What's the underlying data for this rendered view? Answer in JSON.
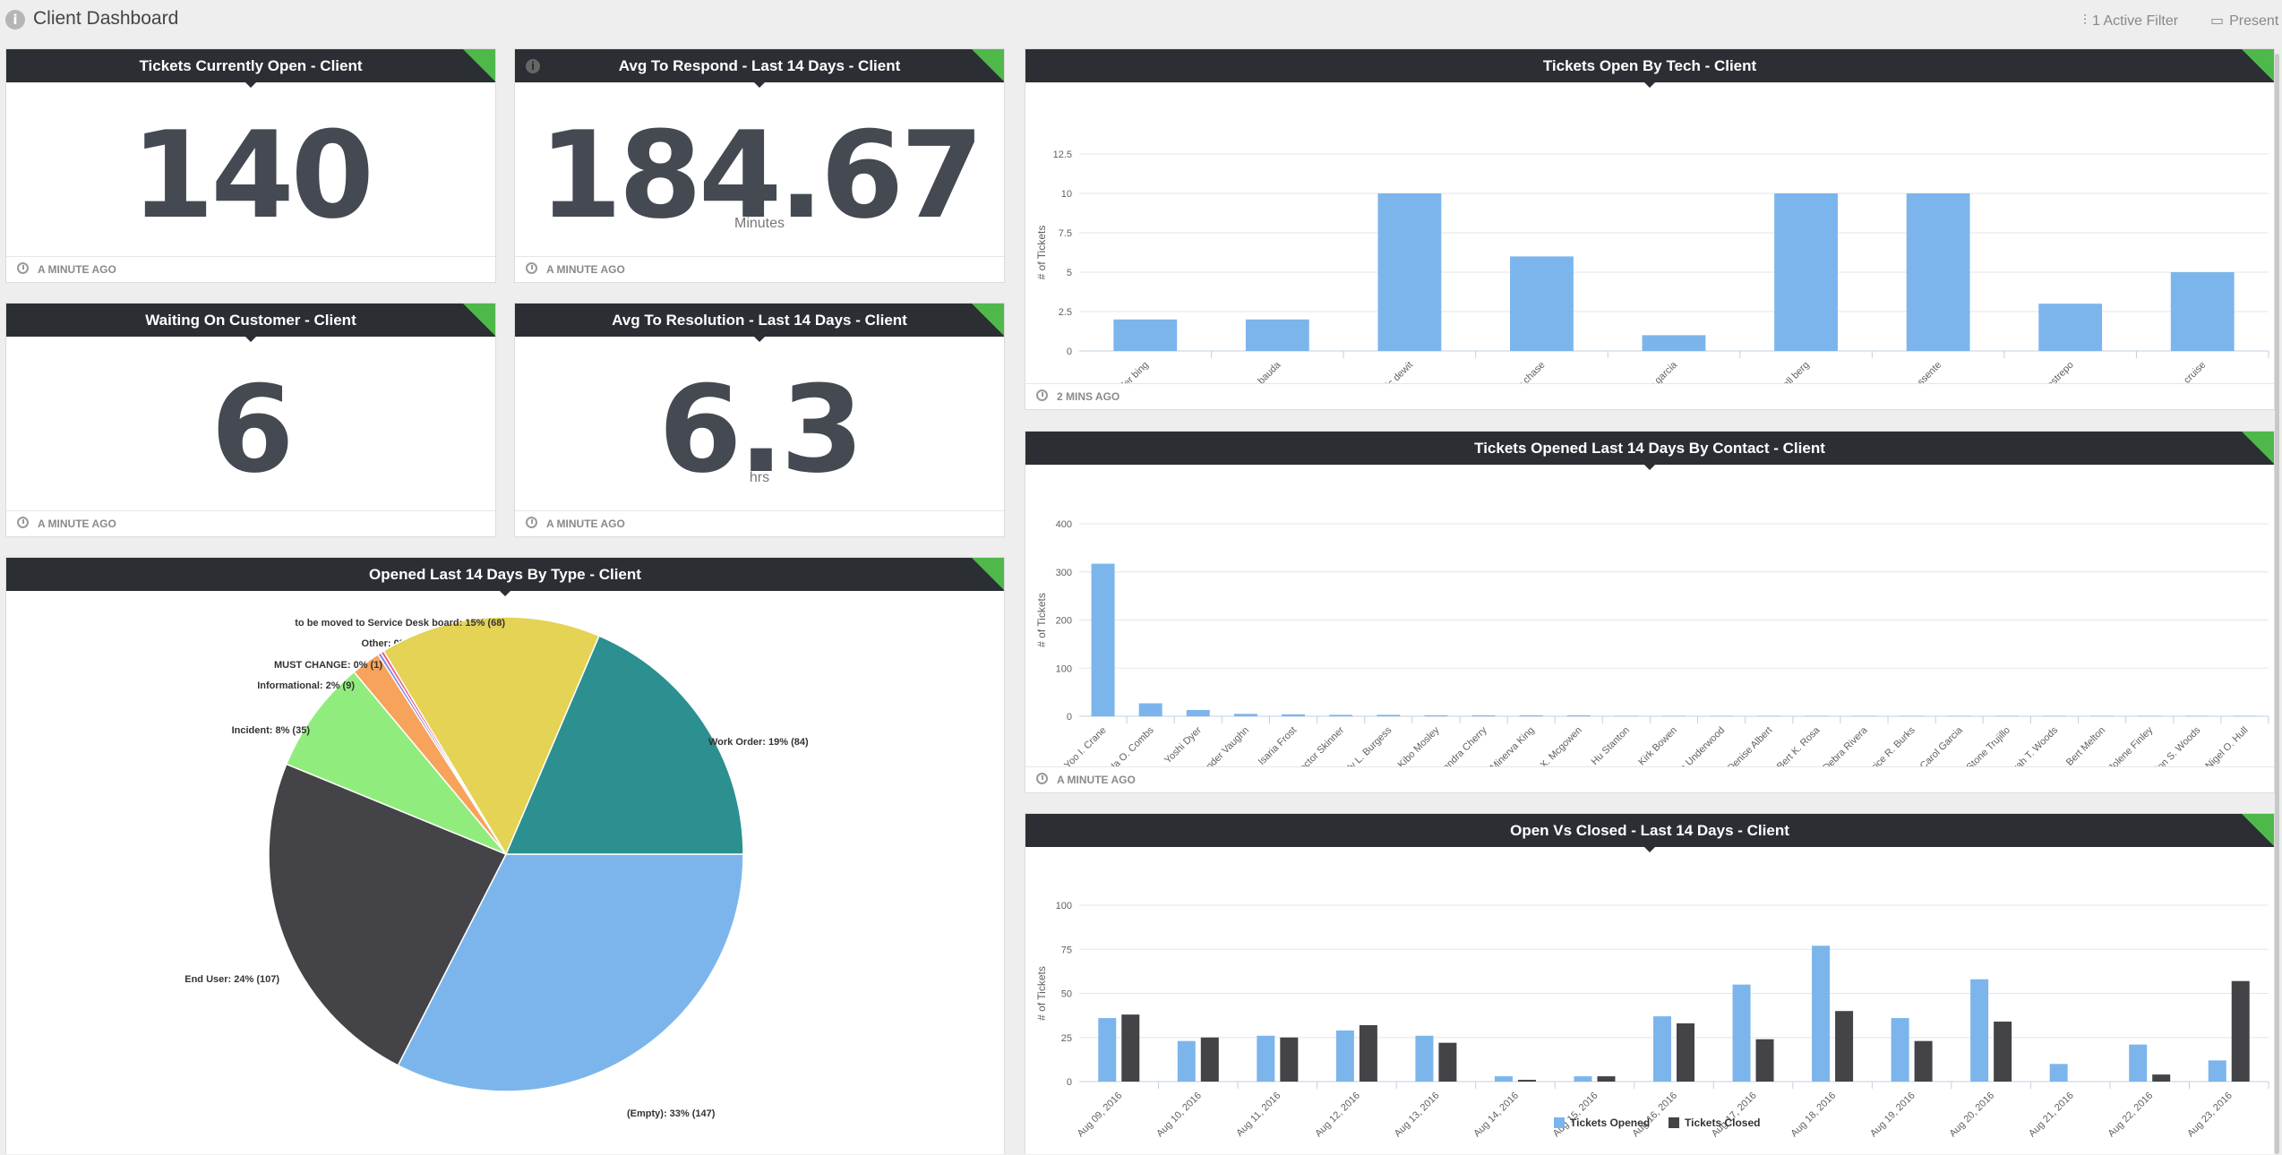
{
  "dashboard": {
    "title": "Client Dashboard",
    "active_filter": "1 Active Filter",
    "present": "Present"
  },
  "colors": {
    "header_bg": "#2b2e33",
    "corner_accent": "#4fb84b",
    "bar_blue": "#7cb5ec",
    "bar_dark": "#434348"
  },
  "kpis": {
    "open": {
      "title": "Tickets Currently Open - Client",
      "value": "140",
      "unit": "",
      "updated": "A MINUTE AGO"
    },
    "respond": {
      "title": "Avg To Respond - Last 14 Days - Client",
      "value": "184.67",
      "unit": "Minutes",
      "updated": "A MINUTE AGO"
    },
    "waiting": {
      "title": "Waiting On Customer - Client",
      "value": "6",
      "unit": "",
      "updated": "A MINUTE AGO"
    },
    "resolution": {
      "title": "Avg To Resolution - Last 14 Days - Client",
      "value": "6.3",
      "unit": "hrs",
      "updated": "A MINUTE AGO"
    }
  },
  "pie_card": {
    "title": "Opened Last 14 Days By Type - Client"
  },
  "tech_card": {
    "title": "Tickets Open By Tech - Client",
    "updated": "2 MINS AGO"
  },
  "contact_card": {
    "title": "Tickets Opened Last 14 Days By Contact - Client",
    "updated": "A MINUTE AGO"
  },
  "ovc_card": {
    "title": "Open Vs Closed - Last 14 Days - Client"
  },
  "chart_data": [
    {
      "type": "pie",
      "title": "Opened Last 14 Days By Type - Client",
      "slices": [
        {
          "label": "(Empty): 33% (147)",
          "value": 147,
          "color": "#7cb5ec"
        },
        {
          "label": "End User: 24% (107)",
          "value": 107,
          "color": "#434348"
        },
        {
          "label": "Incident: 8% (35)",
          "value": 35,
          "color": "#90ed7d"
        },
        {
          "label": "Informational: 2% (9)",
          "value": 9,
          "color": "#f7a35c"
        },
        {
          "label": "MUST CHANGE: 0% (1)",
          "value": 1,
          "color": "#8085e9"
        },
        {
          "label": "Other: 0% (1)",
          "value": 1,
          "color": "#f15c80"
        },
        {
          "label": "to be moved to Service Desk board: 15% (68)",
          "value": 68,
          "color": "#e4d354"
        },
        {
          "label": "Work Order: 19% (84)",
          "value": 84,
          "color": "#2b908f"
        }
      ]
    },
    {
      "type": "bar",
      "title": "Tickets Open By Tech - Client",
      "ylabel": "# of Tickets",
      "ylim": [
        0,
        12.5
      ],
      "yticks": [
        "0",
        "2.5",
        "5",
        "7.5",
        "10",
        "12.5"
      ],
      "categories": [
        "chandler bing",
        "christian bauda",
        "eric dewit",
        "johnny chase",
        "larry garcia",
        "randall berg",
        "salvatore essente",
        "steven restrepo",
        "tom cruise"
      ],
      "values": [
        2,
        2,
        10,
        6,
        1,
        10,
        10,
        3,
        5
      ]
    },
    {
      "type": "bar",
      "title": "Tickets Opened Last 14 Days By Contact - Client",
      "ylabel": "# of Tickets",
      "ylim": [
        0,
        400
      ],
      "yticks": [
        "0",
        "100",
        "200",
        "300",
        "400"
      ],
      "categories": [
        "Yoo I. Crane",
        "Hayla O. Combs",
        "Yoshi Dyer",
        "Xander Vaughn",
        "Isaria Frost",
        "Hector Skinner",
        "Holly L. Burgess",
        "Kibo Mosley",
        "Sandra Cherry",
        "Minerva King",
        "Adina X. Mcgowen",
        "Hu Stanton",
        "Kirk Bowen",
        "Rama Underwood",
        "Denise Albert",
        "Bert K. Rosa",
        "Debra Rivera",
        "Beatrice R. Burks",
        "Carol Garcia",
        "Stone Trujillo",
        "Farrah T. Woods",
        "Bert Melton",
        "Jolene Finley",
        "Talon S. Woods",
        "Nigel O. Hull"
      ],
      "values": [
        317,
        27,
        13,
        5,
        4,
        3,
        3,
        2,
        2,
        2,
        2,
        1,
        1,
        1,
        1,
        1,
        1,
        1,
        1,
        1,
        1,
        1,
        1,
        1,
        1
      ]
    },
    {
      "type": "bar",
      "title": "Open Vs Closed - Last 14 Days - Client",
      "ylabel": "# of Tickets",
      "ylim": [
        0,
        100
      ],
      "yticks": [
        "0",
        "25",
        "50",
        "75",
        "100"
      ],
      "categories": [
        "Aug 09, 2016",
        "Aug 10, 2016",
        "Aug 11, 2016",
        "Aug 12, 2016",
        "Aug 13, 2016",
        "Aug 14, 2016",
        "Aug 15, 2016",
        "Aug 16, 2016",
        "Aug 17, 2016",
        "Aug 18, 2016",
        "Aug 19, 2016",
        "Aug 20, 2016",
        "Aug 21, 2016",
        "Aug 22, 2016",
        "Aug 23, 2016"
      ],
      "series": [
        {
          "name": "Tickets Opened",
          "values": [
            36,
            23,
            26,
            29,
            26,
            3,
            3,
            37,
            55,
            77,
            36,
            58,
            10,
            21,
            12
          ]
        },
        {
          "name": "Tickets Closed",
          "values": [
            38,
            25,
            25,
            32,
            22,
            1,
            3,
            33,
            24,
            40,
            23,
            34,
            0,
            4,
            57
          ]
        }
      ],
      "legend": "bottom"
    }
  ]
}
